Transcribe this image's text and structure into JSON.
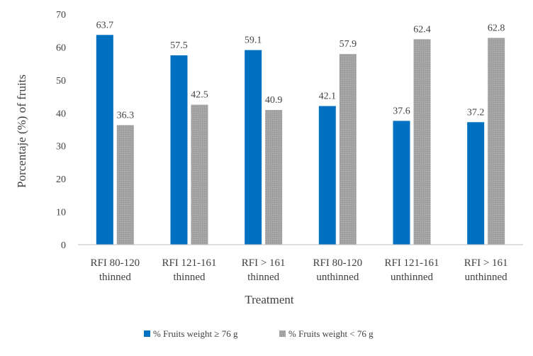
{
  "chart_data": {
    "type": "bar",
    "ylabel": "Porcentaje (%)  of fruits",
    "xlabel": "Treatment",
    "ylim": [
      0,
      70
    ],
    "yticks": [
      0,
      10,
      20,
      30,
      40,
      50,
      60,
      70
    ],
    "grid": false,
    "legend_position": "bottom",
    "categories": [
      [
        "RFI 80-120",
        "thinned"
      ],
      [
        "RFI 121-161",
        "thinned"
      ],
      [
        "RFI > 161",
        "thinned"
      ],
      [
        "RFI 80-120",
        "unthinned"
      ],
      [
        "RFI 121-161",
        "unthinned"
      ],
      [
        "RFI  > 161",
        "unthinned"
      ]
    ],
    "series": [
      {
        "name": "% Fruits weight ≥ 76 g",
        "color": "#0070C0",
        "values": [
          63.7,
          57.5,
          59.1,
          42.1,
          37.6,
          37.2
        ]
      },
      {
        "name": "% Fruits weight < 76 g",
        "color": "#A6A6A6",
        "values": [
          36.3,
          42.5,
          40.9,
          57.9,
          62.4,
          62.8
        ]
      }
    ]
  }
}
